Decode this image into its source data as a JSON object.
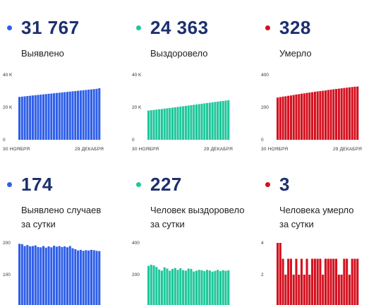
{
  "panels": [
    {
      "id": "total-detected",
      "value": "31 767",
      "label": [
        "Выявлено"
      ],
      "color": "#2f5fe8"
    },
    {
      "id": "total-recovered",
      "value": "24 363",
      "label": [
        "Выздоровело"
      ],
      "color": "#1fc79b"
    },
    {
      "id": "total-deaths",
      "value": "328",
      "label": [
        "Умерло"
      ],
      "color": "#d4101e"
    },
    {
      "id": "daily-detected",
      "value": "174",
      "label": [
        "Выявлено случаев",
        "за сутки"
      ],
      "color": "#2f5fe8"
    },
    {
      "id": "daily-recovered",
      "value": "227",
      "label": [
        "Человек выздоровело",
        "за сутки"
      ],
      "color": "#1fc79b"
    },
    {
      "id": "daily-deaths",
      "value": "3",
      "label": [
        "Человека умерло",
        "за сутки"
      ],
      "color": "#d4101e"
    }
  ],
  "chart_data": [
    {
      "type": "bar",
      "id": "total-detected",
      "yticks": [
        {
          "v": 0,
          "label": "0"
        },
        {
          "v": 20000,
          "label": "20 K"
        },
        {
          "v": 40000,
          "label": "40 K"
        }
      ],
      "ylim": [
        0,
        40000
      ],
      "xlabels": [
        "30 НОЯБРЯ",
        "29 ДЕКАБРЯ"
      ],
      "color": "#2f5fe8",
      "values": [
        26400,
        26580,
        26760,
        26940,
        27120,
        27300,
        27470,
        27640,
        27810,
        27980,
        28150,
        28320,
        28490,
        28660,
        28830,
        29000,
        29170,
        29340,
        29510,
        29680,
        29850,
        30020,
        30190,
        30360,
        30530,
        30700,
        30870,
        31040,
        31220,
        31400,
        31767
      ]
    },
    {
      "type": "bar",
      "id": "total-recovered",
      "yticks": [
        {
          "v": 0,
          "label": "0"
        },
        {
          "v": 20000,
          "label": "20 K"
        },
        {
          "v": 40000,
          "label": "40 K"
        }
      ],
      "ylim": [
        0,
        40000
      ],
      "xlabels": [
        "30 НОЯБРЯ",
        "29 ДЕКАБРЯ"
      ],
      "color": "#1fc79b",
      "values": [
        18000,
        18200,
        18400,
        18600,
        18800,
        19000,
        19200,
        19400,
        19600,
        19800,
        20000,
        20220,
        20440,
        20660,
        20880,
        21100,
        21320,
        21540,
        21760,
        21980,
        22200,
        22420,
        22640,
        22860,
        23080,
        23300,
        23520,
        23740,
        23960,
        24160,
        24363
      ]
    },
    {
      "type": "bar",
      "id": "total-deaths",
      "yticks": [
        {
          "v": 0,
          "label": "0"
        },
        {
          "v": 200,
          "label": "200"
        },
        {
          "v": 400,
          "label": "400"
        }
      ],
      "ylim": [
        0,
        400
      ],
      "xlabels": [
        "30 НОЯБРЯ",
        "29 ДЕКАБРЯ"
      ],
      "color": "#d4101e",
      "values": [
        260,
        263,
        266,
        268,
        271,
        273,
        276,
        279,
        281,
        284,
        286,
        289,
        291,
        293,
        296,
        298,
        300,
        302,
        304,
        307,
        309,
        311,
        313,
        315,
        317,
        319,
        321,
        323,
        325,
        327,
        328
      ]
    },
    {
      "type": "bar",
      "id": "daily-detected",
      "yticks": [
        {
          "v": 100,
          "label": "100"
        },
        {
          "v": 200,
          "label": "200"
        }
      ],
      "ylim": [
        0,
        200
      ],
      "xlabels": [],
      "color": "#2f5fe8",
      "values": [
        197,
        196,
        190,
        193,
        189,
        190,
        192,
        187,
        186,
        190,
        185,
        189,
        186,
        191,
        188,
        190,
        187,
        189,
        186,
        190,
        183,
        180,
        176,
        178,
        175,
        177,
        176,
        178,
        177,
        175,
        174
      ]
    },
    {
      "type": "bar",
      "id": "daily-recovered",
      "yticks": [
        {
          "v": 200,
          "label": "200"
        },
        {
          "v": 400,
          "label": "400"
        }
      ],
      "ylim": [
        0,
        400
      ],
      "xlabels": [],
      "color": "#1fc79b",
      "values": [
        255,
        262,
        258,
        248,
        232,
        225,
        246,
        238,
        225,
        236,
        242,
        230,
        240,
        228,
        225,
        238,
        236,
        220,
        225,
        230,
        228,
        222,
        230,
        226,
        219,
        224,
        230,
        222,
        228,
        224,
        227
      ]
    },
    {
      "type": "bar",
      "id": "daily-deaths",
      "yticks": [
        {
          "v": 2,
          "label": "2"
        },
        {
          "v": 4,
          "label": "4"
        }
      ],
      "ylim": [
        0,
        4
      ],
      "xlabels": [],
      "color": "#d4101e",
      "values": [
        4,
        4,
        3,
        2,
        3,
        3,
        2,
        3,
        2,
        3,
        2,
        3,
        2,
        3,
        3,
        3,
        3,
        2,
        3,
        3,
        3,
        3,
        3,
        2,
        2,
        3,
        3,
        2,
        3,
        3,
        3
      ]
    }
  ]
}
